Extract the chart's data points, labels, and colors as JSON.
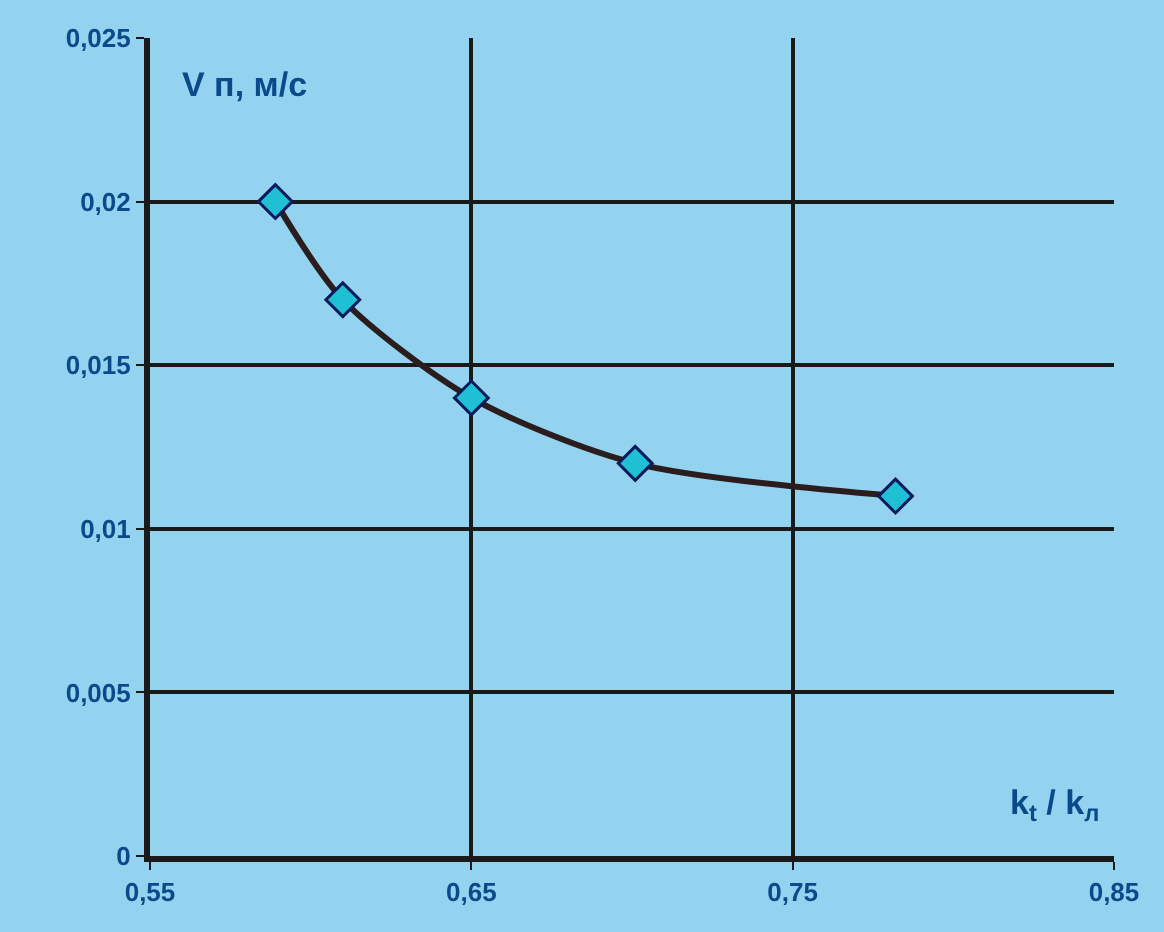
{
  "chart_data": {
    "type": "line",
    "xlabel": "k$_{t}$ / k$_{л}$",
    "ylabel": "V п, м/с",
    "x": [
      0.589,
      0.61,
      0.65,
      0.701,
      0.782
    ],
    "series": [
      {
        "color": "#1fbfd4",
        "values": [
          0.02,
          0.017,
          0.014,
          0.012,
          0.011
        ]
      }
    ],
    "xlim": [
      0.55,
      0.85
    ],
    "xticks": [
      {
        "value": 0.55,
        "label": "0,55"
      },
      {
        "value": 0.65,
        "label": "0,65"
      },
      {
        "value": 0.75,
        "label": "0,75"
      },
      {
        "value": 0.85,
        "label": "0,85"
      }
    ],
    "ylim": [
      0,
      0.025
    ],
    "yticks": [
      {
        "value": 0,
        "label": "0"
      },
      {
        "value": 0.005,
        "label": "0,005"
      },
      {
        "value": 0.01,
        "label": "0,01"
      },
      {
        "value": 0.015,
        "label": "0,015"
      },
      {
        "value": 0.02,
        "label": "0,02"
      },
      {
        "value": 0.025,
        "label": "0,025"
      }
    ],
    "grid": true,
    "marker": "diamond",
    "line_style": "solid",
    "legend": false
  }
}
